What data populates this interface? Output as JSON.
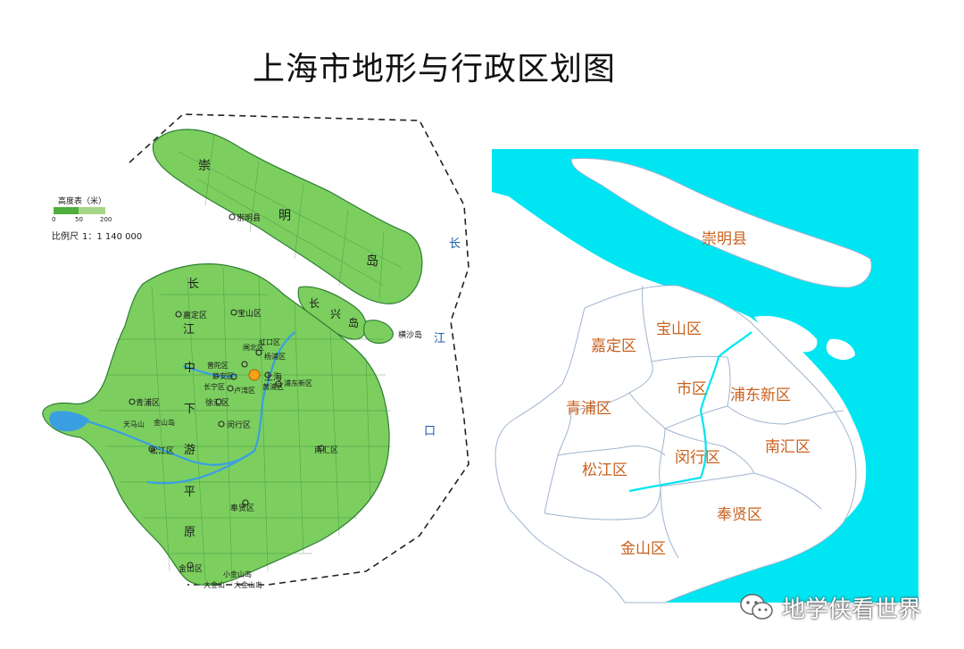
{
  "title": "上海市地形与行政区划图",
  "colors": {
    "land_green": "#7ccf5f",
    "land_green_dark": "#4fae3c",
    "river_blue": "#3a9fe0",
    "sea_cyan": "#00e5f2",
    "district_label": "#c8611e",
    "boundary_grey": "#9fb5cf"
  },
  "legend": {
    "elevation_title": "高度表（米）",
    "elevation_ticks": [
      "0",
      "50",
      "200"
    ],
    "scale_label": "比例尺",
    "scale_value": "1：1 140 000"
  },
  "left_map": {
    "place_labels": [
      "崇明县",
      "嘉定区",
      "宝山区",
      "闸北区",
      "虹口区",
      "杨浦区",
      "普陀区",
      "静安区",
      "长宁区",
      "卢湾区",
      "黄浦区",
      "浦东新区",
      "徐汇区",
      "闵行区",
      "青浦区",
      "松江区",
      "南汇区",
      "奉贤区",
      "金山区",
      "横沙岛",
      "小金山岛",
      "大金山岛",
      "大金山",
      "天马山",
      "金山岛"
    ],
    "region_text": [
      "崇",
      "明",
      "岛",
      "长",
      "兴",
      "岛",
      "长",
      "江",
      "中",
      "下",
      "游",
      "平",
      "原"
    ],
    "sea_text": [
      "长",
      "江",
      "口"
    ],
    "city_label": "上海"
  },
  "right_map": {
    "districts": [
      "崇明县",
      "宝山区",
      "嘉定区",
      "市区",
      "浦东新区",
      "青浦区",
      "南汇区",
      "松江区",
      "闵行区",
      "奉贤区",
      "金山区"
    ]
  },
  "watermark": {
    "text": "地学侠看世界",
    "icon": "wechat-icon"
  }
}
